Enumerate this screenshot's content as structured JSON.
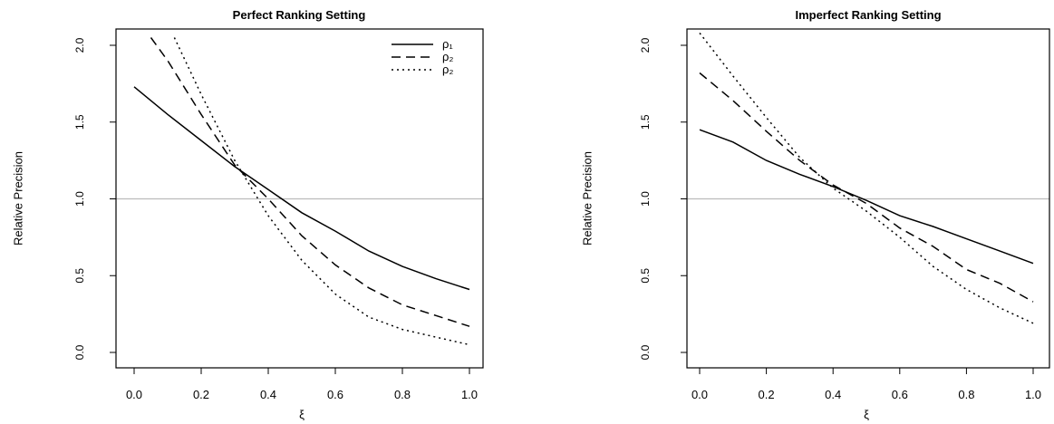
{
  "chart_data": [
    {
      "type": "line",
      "title": "Perfect Ranking Setting",
      "xlabel": "ξ",
      "ylabel": "Relative Precision",
      "xlim": [
        0,
        1
      ],
      "ylim": [
        0,
        2
      ],
      "xticks": [
        "0.0",
        "0.2",
        "0.4",
        "0.6",
        "0.8",
        "1.0"
      ],
      "yticks": [
        "0.0",
        "0.5",
        "1.0",
        "1.5",
        "2.0"
      ],
      "reference_line": {
        "y": 1.0,
        "color": "#bbbbbb"
      },
      "legend": {
        "position": "top-right"
      },
      "series": [
        {
          "name": "ρ₁",
          "style": "solid",
          "x": [
            0,
            0.1,
            0.2,
            0.3,
            0.4,
            0.5,
            0.6,
            0.7,
            0.8,
            0.9,
            1.0
          ],
          "values": [
            1.73,
            1.55,
            1.38,
            1.21,
            1.06,
            0.91,
            0.79,
            0.66,
            0.56,
            0.48,
            0.41
          ]
        },
        {
          "name": "ρ₂",
          "style": "dashed",
          "x": [
            0.05,
            0.1,
            0.2,
            0.3,
            0.4,
            0.5,
            0.6,
            0.7,
            0.8,
            0.9,
            1.0
          ],
          "values": [
            2.05,
            1.9,
            1.55,
            1.22,
            1.0,
            0.76,
            0.57,
            0.42,
            0.31,
            0.24,
            0.17
          ]
        },
        {
          "name": "ρ₂",
          "style": "dotted",
          "x": [
            0.12,
            0.2,
            0.3,
            0.4,
            0.5,
            0.6,
            0.7,
            0.8,
            0.9,
            1.0
          ],
          "values": [
            2.05,
            1.68,
            1.25,
            0.89,
            0.6,
            0.38,
            0.23,
            0.15,
            0.1,
            0.05
          ]
        }
      ]
    },
    {
      "type": "line",
      "title": "Imperfect Ranking Setting",
      "xlabel": "ξ",
      "ylabel": "Relative Precision",
      "xlim": [
        0,
        1
      ],
      "ylim": [
        0,
        2
      ],
      "xticks": [
        "0.0",
        "0.2",
        "0.4",
        "0.6",
        "0.8",
        "1.0"
      ],
      "yticks": [
        "0.0",
        "0.5",
        "1.0",
        "1.5",
        "2.0"
      ],
      "reference_line": {
        "y": 1.0,
        "color": "#bbbbbb"
      },
      "series": [
        {
          "style": "solid",
          "x": [
            0,
            0.1,
            0.2,
            0.3,
            0.4,
            0.5,
            0.6,
            0.7,
            0.8,
            0.9,
            1.0
          ],
          "values": [
            1.45,
            1.37,
            1.25,
            1.16,
            1.08,
            0.99,
            0.89,
            0.82,
            0.74,
            0.66,
            0.58
          ]
        },
        {
          "style": "dashed",
          "x": [
            0,
            0.1,
            0.2,
            0.3,
            0.4,
            0.5,
            0.6,
            0.7,
            0.8,
            0.9,
            1.0
          ],
          "values": [
            1.82,
            1.64,
            1.44,
            1.25,
            1.09,
            0.97,
            0.81,
            0.69,
            0.54,
            0.45,
            0.33
          ]
        },
        {
          "style": "dotted",
          "x": [
            0,
            0.1,
            0.2,
            0.3,
            0.4,
            0.5,
            0.6,
            0.7,
            0.8,
            0.9,
            1.0
          ],
          "values": [
            2.08,
            1.8,
            1.53,
            1.27,
            1.07,
            0.92,
            0.75,
            0.56,
            0.41,
            0.29,
            0.19
          ]
        }
      ]
    }
  ]
}
